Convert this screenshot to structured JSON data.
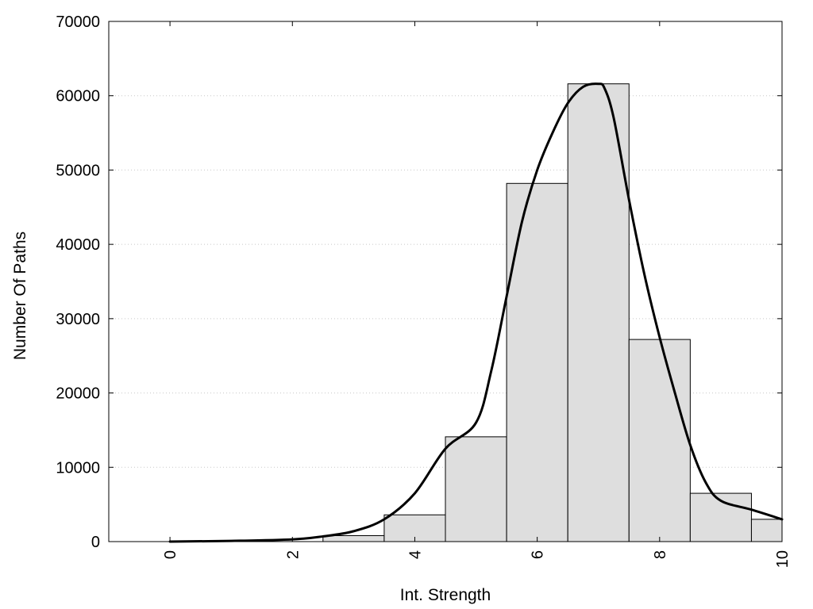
{
  "chart_data": {
    "type": "bar",
    "title": "",
    "xlabel": "Int. Strength",
    "ylabel": "Number Of Paths",
    "xlim": [
      -1,
      10
    ],
    "ylim": [
      0,
      70000
    ],
    "x_ticks": [
      0,
      2,
      4,
      6,
      8,
      10
    ],
    "x_tick_labels": [
      "0",
      "2",
      "4",
      "6",
      "8",
      "10"
    ],
    "y_ticks": [
      0,
      10000,
      20000,
      30000,
      40000,
      50000,
      60000,
      70000
    ],
    "y_tick_labels": [
      "0",
      "10000",
      "20000",
      "30000",
      "40000",
      "50000",
      "60000",
      "70000"
    ],
    "grid": "horizontal dotted",
    "bin_width": 1,
    "bars": [
      {
        "x": 0,
        "value": 0
      },
      {
        "x": 1,
        "value": 0
      },
      {
        "x": 2,
        "value": 0
      },
      {
        "x": 3,
        "value": 800
      },
      {
        "x": 4,
        "value": 3600
      },
      {
        "x": 5,
        "value": 14100
      },
      {
        "x": 6,
        "value": 48200
      },
      {
        "x": 7,
        "value": 61600
      },
      {
        "x": 8,
        "value": 27200
      },
      {
        "x": 9,
        "value": 6500
      },
      {
        "x": 10,
        "value": 3000
      }
    ],
    "curve": {
      "style": "solid black line",
      "x": [
        0,
        1,
        2,
        2.5,
        3,
        3.5,
        4,
        4.5,
        5,
        5.25,
        5.5,
        5.75,
        6,
        6.25,
        6.5,
        6.75,
        7,
        7.1,
        7.25,
        7.5,
        7.75,
        8,
        8.25,
        8.5,
        8.75,
        9,
        9.5,
        10
      ],
      "y": [
        0,
        100,
        300,
        700,
        1400,
        3000,
        6500,
        12500,
        16000,
        23000,
        33000,
        43000,
        50000,
        55000,
        59000,
        61200,
        61600,
        61000,
        57000,
        46000,
        36000,
        27500,
        20000,
        13000,
        8000,
        5500,
        4300,
        3000
      ]
    }
  }
}
